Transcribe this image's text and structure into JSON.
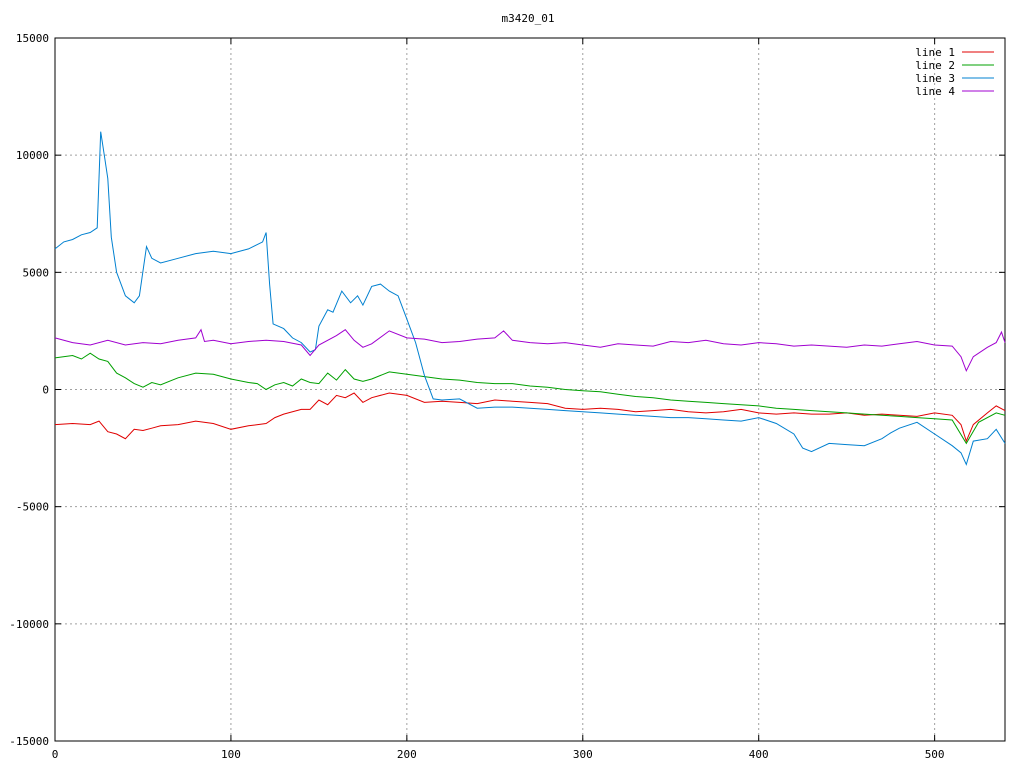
{
  "chart_data": {
    "type": "line",
    "title": "m3420_01",
    "xlabel": "",
    "ylabel": "",
    "xlim": [
      0,
      540
    ],
    "ylim": [
      -15000,
      15000
    ],
    "xticks": [
      0,
      100,
      200,
      300,
      400,
      500
    ],
    "yticks": [
      -15000,
      -10000,
      -5000,
      0,
      5000,
      10000,
      15000
    ],
    "grid": true,
    "legend_position": "top-right",
    "series": [
      {
        "name": "line 1",
        "color": "#e00000",
        "points": [
          [
            0,
            -1500
          ],
          [
            10,
            -1450
          ],
          [
            20,
            -1500
          ],
          [
            25,
            -1350
          ],
          [
            30,
            -1800
          ],
          [
            35,
            -1900
          ],
          [
            40,
            -2100
          ],
          [
            45,
            -1700
          ],
          [
            50,
            -1750
          ],
          [
            55,
            -1650
          ],
          [
            60,
            -1550
          ],
          [
            70,
            -1500
          ],
          [
            80,
            -1350
          ],
          [
            90,
            -1450
          ],
          [
            100,
            -1700
          ],
          [
            110,
            -1550
          ],
          [
            120,
            -1450
          ],
          [
            125,
            -1200
          ],
          [
            130,
            -1050
          ],
          [
            140,
            -850
          ],
          [
            145,
            -850
          ],
          [
            150,
            -450
          ],
          [
            155,
            -650
          ],
          [
            160,
            -250
          ],
          [
            165,
            -350
          ],
          [
            170,
            -150
          ],
          [
            175,
            -550
          ],
          [
            180,
            -350
          ],
          [
            190,
            -150
          ],
          [
            200,
            -250
          ],
          [
            210,
            -550
          ],
          [
            220,
            -500
          ],
          [
            230,
            -550
          ],
          [
            240,
            -600
          ],
          [
            250,
            -450
          ],
          [
            260,
            -500
          ],
          [
            270,
            -550
          ],
          [
            280,
            -600
          ],
          [
            290,
            -800
          ],
          [
            300,
            -850
          ],
          [
            310,
            -800
          ],
          [
            320,
            -850
          ],
          [
            330,
            -950
          ],
          [
            340,
            -900
          ],
          [
            350,
            -850
          ],
          [
            360,
            -950
          ],
          [
            370,
            -1000
          ],
          [
            380,
            -950
          ],
          [
            390,
            -850
          ],
          [
            400,
            -1000
          ],
          [
            410,
            -1050
          ],
          [
            420,
            -1000
          ],
          [
            430,
            -1050
          ],
          [
            440,
            -1050
          ],
          [
            450,
            -1000
          ],
          [
            460,
            -1100
          ],
          [
            470,
            -1050
          ],
          [
            480,
            -1100
          ],
          [
            490,
            -1150
          ],
          [
            500,
            -1000
          ],
          [
            510,
            -1100
          ],
          [
            515,
            -1500
          ],
          [
            518,
            -2200
          ],
          [
            522,
            -1500
          ],
          [
            530,
            -1000
          ],
          [
            535,
            -700
          ],
          [
            540,
            -900
          ]
        ]
      },
      {
        "name": "line 2",
        "color": "#00a000",
        "points": [
          [
            0,
            1350
          ],
          [
            10,
            1450
          ],
          [
            15,
            1300
          ],
          [
            20,
            1550
          ],
          [
            25,
            1300
          ],
          [
            30,
            1200
          ],
          [
            35,
            700
          ],
          [
            40,
            500
          ],
          [
            45,
            250
          ],
          [
            50,
            100
          ],
          [
            55,
            300
          ],
          [
            60,
            200
          ],
          [
            70,
            500
          ],
          [
            80,
            700
          ],
          [
            90,
            650
          ],
          [
            100,
            450
          ],
          [
            110,
            300
          ],
          [
            115,
            250
          ],
          [
            120,
            0
          ],
          [
            125,
            200
          ],
          [
            130,
            300
          ],
          [
            135,
            150
          ],
          [
            140,
            450
          ],
          [
            145,
            300
          ],
          [
            150,
            250
          ],
          [
            155,
            700
          ],
          [
            160,
            400
          ],
          [
            165,
            850
          ],
          [
            170,
            450
          ],
          [
            175,
            350
          ],
          [
            180,
            450
          ],
          [
            190,
            750
          ],
          [
            200,
            650
          ],
          [
            210,
            550
          ],
          [
            220,
            450
          ],
          [
            230,
            400
          ],
          [
            240,
            300
          ],
          [
            250,
            250
          ],
          [
            260,
            250
          ],
          [
            270,
            150
          ],
          [
            280,
            100
          ],
          [
            290,
            0
          ],
          [
            300,
            -50
          ],
          [
            310,
            -100
          ],
          [
            320,
            -200
          ],
          [
            330,
            -300
          ],
          [
            340,
            -350
          ],
          [
            350,
            -450
          ],
          [
            360,
            -500
          ],
          [
            370,
            -550
          ],
          [
            380,
            -600
          ],
          [
            390,
            -650
          ],
          [
            400,
            -700
          ],
          [
            410,
            -800
          ],
          [
            420,
            -850
          ],
          [
            430,
            -900
          ],
          [
            440,
            -950
          ],
          [
            450,
            -1000
          ],
          [
            460,
            -1050
          ],
          [
            470,
            -1100
          ],
          [
            480,
            -1150
          ],
          [
            490,
            -1200
          ],
          [
            500,
            -1250
          ],
          [
            510,
            -1300
          ],
          [
            518,
            -2300
          ],
          [
            525,
            -1400
          ],
          [
            535,
            -1000
          ],
          [
            540,
            -1100
          ]
        ]
      },
      {
        "name": "line 3",
        "color": "#0080d0",
        "points": [
          [
            0,
            6000
          ],
          [
            5,
            6300
          ],
          [
            10,
            6400
          ],
          [
            15,
            6600
          ],
          [
            20,
            6700
          ],
          [
            24,
            6900
          ],
          [
            26,
            11000
          ],
          [
            28,
            10000
          ],
          [
            30,
            9000
          ],
          [
            32,
            6500
          ],
          [
            35,
            5000
          ],
          [
            40,
            4000
          ],
          [
            45,
            3700
          ],
          [
            48,
            4000
          ],
          [
            52,
            6100
          ],
          [
            55,
            5600
          ],
          [
            60,
            5400
          ],
          [
            70,
            5600
          ],
          [
            80,
            5800
          ],
          [
            90,
            5900
          ],
          [
            100,
            5800
          ],
          [
            110,
            6000
          ],
          [
            118,
            6300
          ],
          [
            120,
            6700
          ],
          [
            122,
            4500
          ],
          [
            124,
            2800
          ],
          [
            130,
            2600
          ],
          [
            135,
            2200
          ],
          [
            140,
            2000
          ],
          [
            145,
            1600
          ],
          [
            148,
            1700
          ],
          [
            150,
            2700
          ],
          [
            155,
            3400
          ],
          [
            158,
            3300
          ],
          [
            163,
            4200
          ],
          [
            168,
            3700
          ],
          [
            172,
            4000
          ],
          [
            175,
            3600
          ],
          [
            180,
            4400
          ],
          [
            185,
            4500
          ],
          [
            190,
            4200
          ],
          [
            195,
            4000
          ],
          [
            200,
            3000
          ],
          [
            205,
            2000
          ],
          [
            210,
            600
          ],
          [
            215,
            -400
          ],
          [
            220,
            -450
          ],
          [
            230,
            -400
          ],
          [
            240,
            -800
          ],
          [
            250,
            -750
          ],
          [
            260,
            -750
          ],
          [
            270,
            -800
          ],
          [
            280,
            -850
          ],
          [
            290,
            -900
          ],
          [
            300,
            -950
          ],
          [
            310,
            -1000
          ],
          [
            320,
            -1050
          ],
          [
            330,
            -1100
          ],
          [
            340,
            -1150
          ],
          [
            350,
            -1200
          ],
          [
            360,
            -1200
          ],
          [
            370,
            -1250
          ],
          [
            380,
            -1300
          ],
          [
            390,
            -1350
          ],
          [
            400,
            -1200
          ],
          [
            410,
            -1450
          ],
          [
            420,
            -1900
          ],
          [
            425,
            -2500
          ],
          [
            430,
            -2650
          ],
          [
            440,
            -2300
          ],
          [
            450,
            -2350
          ],
          [
            460,
            -2400
          ],
          [
            470,
            -2100
          ],
          [
            475,
            -1850
          ],
          [
            480,
            -1650
          ],
          [
            490,
            -1400
          ],
          [
            500,
            -1900
          ],
          [
            510,
            -2400
          ],
          [
            515,
            -2700
          ],
          [
            518,
            -3200
          ],
          [
            522,
            -2200
          ],
          [
            530,
            -2100
          ],
          [
            535,
            -1700
          ],
          [
            540,
            -2300
          ]
        ]
      },
      {
        "name": "line 4",
        "color": "#a000d0",
        "points": [
          [
            0,
            2200
          ],
          [
            10,
            2000
          ],
          [
            20,
            1900
          ],
          [
            30,
            2100
          ],
          [
            40,
            1900
          ],
          [
            50,
            2000
          ],
          [
            60,
            1950
          ],
          [
            70,
            2100
          ],
          [
            80,
            2200
          ],
          [
            83,
            2550
          ],
          [
            85,
            2050
          ],
          [
            90,
            2100
          ],
          [
            100,
            1950
          ],
          [
            110,
            2050
          ],
          [
            120,
            2100
          ],
          [
            130,
            2050
          ],
          [
            140,
            1900
          ],
          [
            145,
            1450
          ],
          [
            150,
            1900
          ],
          [
            160,
            2300
          ],
          [
            165,
            2550
          ],
          [
            170,
            2100
          ],
          [
            175,
            1800
          ],
          [
            180,
            1950
          ],
          [
            190,
            2500
          ],
          [
            200,
            2200
          ],
          [
            210,
            2150
          ],
          [
            220,
            2000
          ],
          [
            230,
            2050
          ],
          [
            240,
            2150
          ],
          [
            250,
            2200
          ],
          [
            255,
            2500
          ],
          [
            260,
            2100
          ],
          [
            270,
            2000
          ],
          [
            280,
            1950
          ],
          [
            290,
            2000
          ],
          [
            300,
            1900
          ],
          [
            310,
            1800
          ],
          [
            320,
            1950
          ],
          [
            330,
            1900
          ],
          [
            340,
            1850
          ],
          [
            350,
            2050
          ],
          [
            360,
            2000
          ],
          [
            370,
            2100
          ],
          [
            380,
            1950
          ],
          [
            390,
            1900
          ],
          [
            400,
            2000
          ],
          [
            410,
            1950
          ],
          [
            420,
            1850
          ],
          [
            430,
            1900
          ],
          [
            440,
            1850
          ],
          [
            450,
            1800
          ],
          [
            460,
            1900
          ],
          [
            470,
            1850
          ],
          [
            480,
            1950
          ],
          [
            490,
            2050
          ],
          [
            500,
            1900
          ],
          [
            510,
            1850
          ],
          [
            515,
            1400
          ],
          [
            518,
            800
          ],
          [
            522,
            1400
          ],
          [
            530,
            1800
          ],
          [
            535,
            2000
          ],
          [
            538,
            2450
          ],
          [
            540,
            2000
          ]
        ]
      }
    ]
  }
}
